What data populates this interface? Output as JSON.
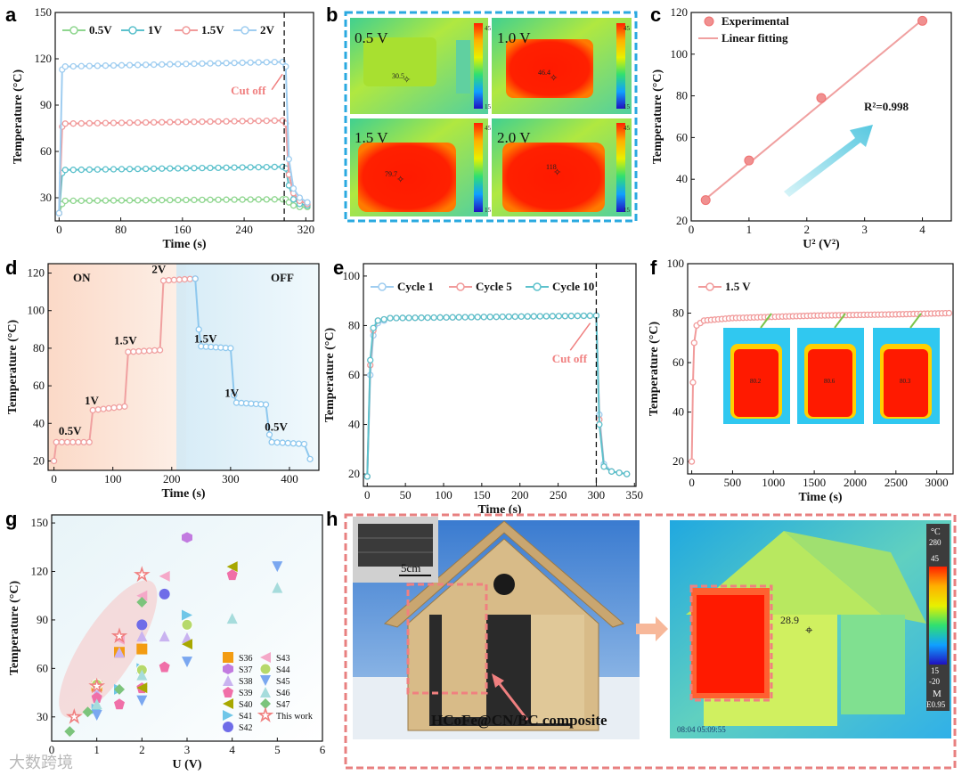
{
  "panel_letters": {
    "a": "a",
    "b": "b",
    "c": "c",
    "d": "d",
    "e": "e",
    "f": "f",
    "g": "g",
    "h": "h"
  },
  "colors": {
    "green": "#8fd68f",
    "teal": "#5cc1cc",
    "pink": "#f19a9a",
    "blue": "#9fcdf0",
    "salmon": "#f08080",
    "frame": "#2aa9e0",
    "frame_h": "#e88080"
  },
  "panel_b": {
    "tiles": [
      {
        "label": "0.5 V",
        "reading": "30.5",
        "scale_top": "45",
        "scale_bottom": "15"
      },
      {
        "label": "1.0 V",
        "reading": "46.4",
        "scale_top": "45",
        "scale_bottom": "15"
      },
      {
        "label": "1.5 V",
        "reading": "79.7",
        "scale_top": "45",
        "scale_bottom": "15"
      },
      {
        "label": "2.0 V",
        "reading": "118",
        "scale_top": "45",
        "scale_bottom": "15"
      }
    ]
  },
  "panel_f_insets": {
    "readings": [
      "80.2",
      "80.6",
      "80.3"
    ]
  },
  "panel_h": {
    "photo_scale_label": "5cm",
    "composite_label": "HCoFe@CN/BC composite",
    "thermal_reading": "28.9",
    "unit": "°C",
    "scale_labels": [
      "280",
      "45",
      "15",
      "-20"
    ],
    "mode": "M",
    "emissivity": "E0.95",
    "timestamp": "08:04 05:09:55"
  },
  "watermark": "大数跨境",
  "chart_data": [
    {
      "id": "a",
      "type": "line",
      "xlabel": "Time (s)",
      "ylabel": "Temperature (°C)",
      "xlim": [
        -5,
        330
      ],
      "ylim": [
        15,
        150
      ],
      "xticks": [
        0,
        80,
        160,
        240,
        320
      ],
      "yticks": [
        30,
        60,
        90,
        120,
        150
      ],
      "cutoff_x": 292,
      "annotation": "Cut off",
      "series": [
        {
          "name": "0.5V",
          "color": "#8fd68f",
          "values": [
            [
              0,
              20
            ],
            [
              4,
              26
            ],
            [
              8,
              28
            ],
            [
              290,
              29
            ],
            [
              294,
              29
            ],
            [
              298,
              27
            ],
            [
              304,
              25
            ],
            [
              312,
              24
            ],
            [
              322,
              24
            ]
          ]
        },
        {
          "name": "1V",
          "color": "#5cc1cc",
          "values": [
            [
              0,
              20
            ],
            [
              4,
              46
            ],
            [
              8,
              48
            ],
            [
              290,
              50
            ],
            [
              294,
              49
            ],
            [
              298,
              38
            ],
            [
              304,
              29
            ],
            [
              312,
              26
            ],
            [
              322,
              25
            ]
          ]
        },
        {
          "name": "1.5V",
          "color": "#f19a9a",
          "values": [
            [
              0,
              20
            ],
            [
              4,
              76
            ],
            [
              8,
              78
            ],
            [
              290,
              80
            ],
            [
              294,
              78
            ],
            [
              298,
              45
            ],
            [
              304,
              33
            ],
            [
              312,
              28
            ],
            [
              322,
              26
            ]
          ]
        },
        {
          "name": "2V",
          "color": "#9fcdf0",
          "values": [
            [
              0,
              20
            ],
            [
              4,
              113
            ],
            [
              8,
              115
            ],
            [
              290,
              118
            ],
            [
              294,
              115
            ],
            [
              298,
              55
            ],
            [
              304,
              36
            ],
            [
              312,
              30
            ],
            [
              322,
              27
            ]
          ]
        }
      ]
    },
    {
      "id": "c",
      "type": "scatter",
      "xlabel": "U² (V²)",
      "ylabel": "Temperature (°C)",
      "xlim": [
        0,
        4.5
      ],
      "ylim": [
        20,
        120
      ],
      "xticks": [
        0,
        1,
        2,
        3,
        4
      ],
      "yticks": [
        20,
        40,
        60,
        80,
        100,
        120
      ],
      "series": [
        {
          "name": "Experimental",
          "x": [
            0.25,
            1,
            2.25,
            4
          ],
          "y": [
            30,
            49,
            79,
            116
          ]
        },
        {
          "name": "Linear fitting",
          "x": [
            0.25,
            4
          ],
          "y": [
            30.5,
            116.5
          ]
        }
      ],
      "annotation": "R²=0.998"
    },
    {
      "id": "d",
      "type": "line",
      "xlabel": "Time (s)",
      "ylabel": "Temperature (°C)",
      "xlim": [
        -10,
        450
      ],
      "ylim": [
        15,
        125
      ],
      "xticks": [
        0,
        100,
        200,
        300,
        400
      ],
      "yticks": [
        20,
        40,
        60,
        80,
        100,
        120
      ],
      "region_labels": [
        "ON",
        "OFF"
      ],
      "step_labels": [
        "0.5V",
        "1V",
        "1.5V",
        "2V",
        "1.5V",
        "1V",
        "0.5V"
      ],
      "values": [
        [
          0,
          20
        ],
        [
          4,
          30
        ],
        [
          60,
          30
        ],
        [
          66,
          47
        ],
        [
          120,
          49
        ],
        [
          126,
          78
        ],
        [
          180,
          79
        ],
        [
          186,
          116
        ],
        [
          240,
          117
        ],
        [
          246,
          90
        ],
        [
          250,
          81
        ],
        [
          300,
          80
        ],
        [
          306,
          55
        ],
        [
          310,
          51
        ],
        [
          360,
          50
        ],
        [
          366,
          34
        ],
        [
          370,
          30
        ],
        [
          425,
          29
        ],
        [
          435,
          21
        ]
      ]
    },
    {
      "id": "e",
      "type": "line",
      "xlabel": "Time (s)",
      "ylabel": "Temperature (°C)",
      "xlim": [
        -5,
        352
      ],
      "ylim": [
        15,
        105
      ],
      "xticks": [
        0,
        50,
        100,
        150,
        200,
        250,
        300,
        350
      ],
      "yticks": [
        20,
        40,
        60,
        80,
        100
      ],
      "cutoff_x": 300,
      "annotation": "Cut off",
      "series": [
        {
          "name": "Cycle 1",
          "color": "#9fcdf0",
          "values": [
            [
              0,
              19
            ],
            [
              4,
              60
            ],
            [
              8,
              76
            ],
            [
              14,
              81
            ],
            [
              30,
              83
            ],
            [
              300,
              84
            ],
            [
              304,
              44
            ],
            [
              310,
              24
            ],
            [
              320,
              21
            ],
            [
              340,
              20
            ]
          ]
        },
        {
          "name": "Cycle 5",
          "color": "#f19a9a",
          "values": [
            [
              0,
              19
            ],
            [
              4,
              64
            ],
            [
              8,
              78
            ],
            [
              14,
              82
            ],
            [
              30,
              83
            ],
            [
              300,
              84
            ],
            [
              304,
              42
            ],
            [
              310,
              23
            ],
            [
              320,
              21
            ],
            [
              340,
              20
            ]
          ]
        },
        {
          "name": "Cycle 10",
          "color": "#5cc1cc",
          "values": [
            [
              0,
              19
            ],
            [
              4,
              66
            ],
            [
              8,
              79
            ],
            [
              14,
              82
            ],
            [
              30,
              83
            ],
            [
              300,
              84
            ],
            [
              304,
              40
            ],
            [
              310,
              23
            ],
            [
              320,
              21
            ],
            [
              340,
              20
            ]
          ]
        }
      ]
    },
    {
      "id": "f",
      "type": "line",
      "xlabel": "Time (s)",
      "ylabel": "Temperature (°C)",
      "xlim": [
        -50,
        3200
      ],
      "ylim": [
        15,
        100
      ],
      "xticks": [
        0,
        500,
        1000,
        1500,
        2000,
        2500,
        3000
      ],
      "yticks": [
        20,
        40,
        60,
        80,
        100
      ],
      "series": [
        {
          "name": "1.5 V",
          "color": "#f19a9a",
          "values": [
            [
              0,
              20
            ],
            [
              15,
              52
            ],
            [
              30,
              68
            ],
            [
              60,
              75
            ],
            [
              150,
              77
            ],
            [
              500,
              78
            ],
            [
              1500,
              79
            ],
            [
              2500,
              79.5
            ],
            [
              3150,
              80
            ]
          ]
        }
      ]
    },
    {
      "id": "g",
      "type": "scatter",
      "xlabel": "U (V)",
      "ylabel": "Temperature (°C)",
      "xlim": [
        0,
        6
      ],
      "ylim": [
        15,
        155
      ],
      "xticks": [
        0,
        1,
        2,
        3,
        4,
        5,
        6
      ],
      "yticks": [
        30,
        60,
        90,
        120,
        150
      ],
      "series": [
        {
          "name": "S36",
          "marker": "square",
          "color": "#f39c12",
          "x": [
            1,
            1.5,
            2
          ],
          "y": [
            49,
            70,
            72
          ]
        },
        {
          "name": "S37",
          "marker": "hexagon",
          "color": "#c27be0",
          "x": [
            3
          ],
          "y": [
            141
          ]
        },
        {
          "name": "S38",
          "marker": "triangle-up",
          "color": "#c9b3f0",
          "x": [
            1,
            1.5,
            2,
            2.5,
            3
          ],
          "y": [
            45,
            70,
            80,
            80,
            79
          ]
        },
        {
          "name": "S39",
          "marker": "pentagon",
          "color": "#f06fa8",
          "x": [
            1,
            1.5,
            2,
            2.5,
            4
          ],
          "y": [
            42,
            38,
            48,
            61,
            118
          ]
        },
        {
          "name": "S40",
          "marker": "triangle-left",
          "color": "#a8a800",
          "x": [
            2,
            3,
            4
          ],
          "y": [
            48,
            75,
            123
          ]
        },
        {
          "name": "S41",
          "marker": "triangle-right",
          "color": "#6fc6e8",
          "x": [
            1,
            1.5,
            2,
            3
          ],
          "y": [
            35,
            47,
            60,
            93
          ]
        },
        {
          "name": "S42",
          "marker": "circle",
          "color": "#6f6ce8",
          "x": [
            2,
            2.5
          ],
          "y": [
            87,
            106
          ]
        },
        {
          "name": "S43",
          "marker": "triangle-left",
          "color": "#f5a8c8",
          "x": [
            1.5,
            2,
            2.5
          ],
          "y": [
            78,
            105,
            117
          ]
        },
        {
          "name": "S44",
          "marker": "half-circle",
          "color": "#b6d96b",
          "x": [
            1,
            2,
            3
          ],
          "y": [
            50,
            59,
            87
          ]
        },
        {
          "name": "S45",
          "marker": "triangle-down",
          "color": "#7aa7f0",
          "x": [
            1,
            2,
            3,
            5
          ],
          "y": [
            31,
            40,
            64,
            123
          ]
        },
        {
          "name": "S46",
          "marker": "triangle-up",
          "color": "#a6dcdc",
          "x": [
            1,
            2,
            4,
            5
          ],
          "y": [
            38,
            56,
            91,
            110
          ]
        },
        {
          "name": "S47",
          "marker": "diamond",
          "color": "#7cc47c",
          "x": [
            0.4,
            0.8,
            1.5,
            2
          ],
          "y": [
            21,
            33,
            47,
            101
          ]
        },
        {
          "name": "This work",
          "marker": "star",
          "color": "#f08080",
          "x": [
            0.5,
            1,
            1.5,
            2
          ],
          "y": [
            30,
            49,
            80,
            118
          ]
        }
      ]
    }
  ]
}
